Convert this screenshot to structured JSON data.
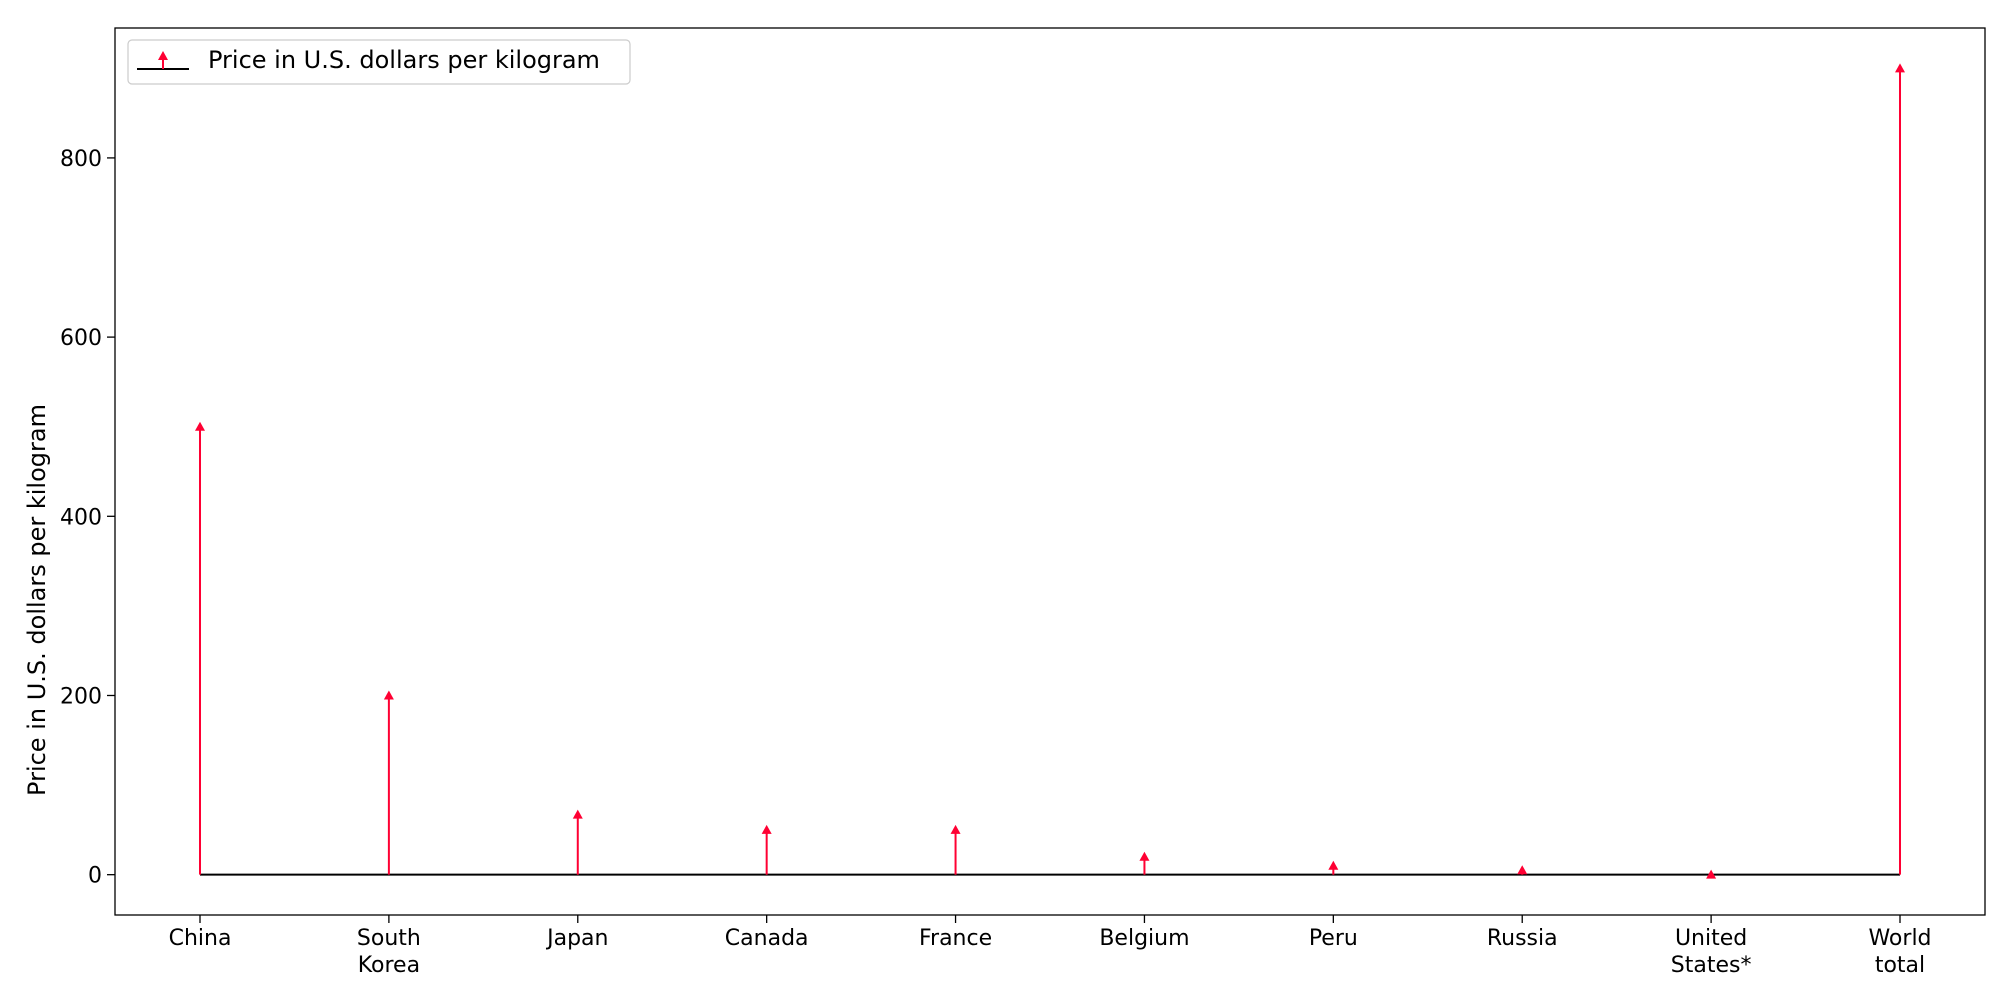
{
  "chart_data": {
    "type": "stem",
    "ylabel": "Price in U.S. dollars per kilogram",
    "xlabel": "",
    "categories": [
      [
        "China"
      ],
      [
        "South",
        "Korea"
      ],
      [
        "Japan"
      ],
      [
        "Canada"
      ],
      [
        "France"
      ],
      [
        "Belgium"
      ],
      [
        "Peru"
      ],
      [
        "Russia"
      ],
      [
        "United",
        "States*"
      ],
      [
        "World",
        "total"
      ]
    ],
    "series": [
      {
        "name": "Price in U.S. dollars per kilogram",
        "values": [
          500,
          200,
          67,
          50,
          50,
          20,
          10,
          5,
          0,
          900
        ],
        "color": "#ff0033",
        "marker": "triangle-up"
      }
    ],
    "baseline": {
      "value": 0,
      "color": "#000000"
    },
    "ylim": [
      -45,
      945
    ],
    "yticks": [
      0,
      200,
      400,
      600,
      800
    ],
    "legend": {
      "position": "top-left"
    },
    "grid": false
  }
}
